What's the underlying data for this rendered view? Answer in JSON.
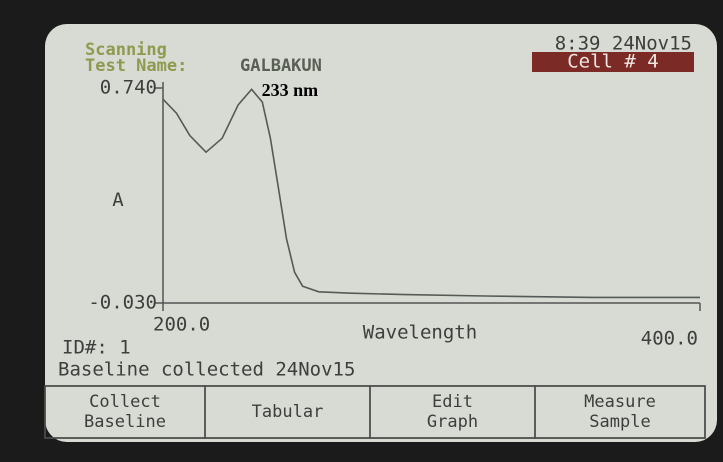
{
  "screen": {
    "status": "Scanning",
    "test_label": "Test Name:",
    "test_name": "GALBAKUN",
    "clock": "8:39 24Nov15",
    "cell": "Cell # 4",
    "id": "ID#: 1",
    "baseline": "Baseline collected 24Nov15",
    "buttons": [
      {
        "line1": "Collect",
        "line2": "Baseline"
      },
      {
        "line1": "Tabular"
      },
      {
        "line1": "Edit",
        "line2": "Graph"
      },
      {
        "line1": "Measure",
        "line2": "Sample"
      }
    ]
  },
  "chart_data": {
    "type": "line",
    "y_label": "A",
    "x_label": "Wavelength",
    "annotation": "233 nm",
    "annotation_x": 233,
    "x": [
      200,
      205,
      210,
      216,
      222,
      228,
      233,
      237,
      240,
      243,
      246,
      249,
      252,
      258,
      270,
      290,
      320,
      360,
      400
    ],
    "values": [
      0.7,
      0.65,
      0.57,
      0.51,
      0.56,
      0.68,
      0.735,
      0.69,
      0.56,
      0.38,
      0.2,
      0.08,
      0.03,
      0.01,
      0.005,
      0.0,
      -0.005,
      -0.01,
      -0.01
    ],
    "color": "#555a55",
    "xlim": [
      200,
      400
    ],
    "ylim": [
      -0.03,
      0.74
    ],
    "xticks": [
      {
        "value": 200,
        "label": "200.0"
      },
      {
        "value": 400,
        "label": "400.0"
      }
    ],
    "yticks": [
      {
        "value": -0.03,
        "label": "-0.030"
      },
      {
        "value": 0.74,
        "label": "0.740"
      }
    ]
  }
}
